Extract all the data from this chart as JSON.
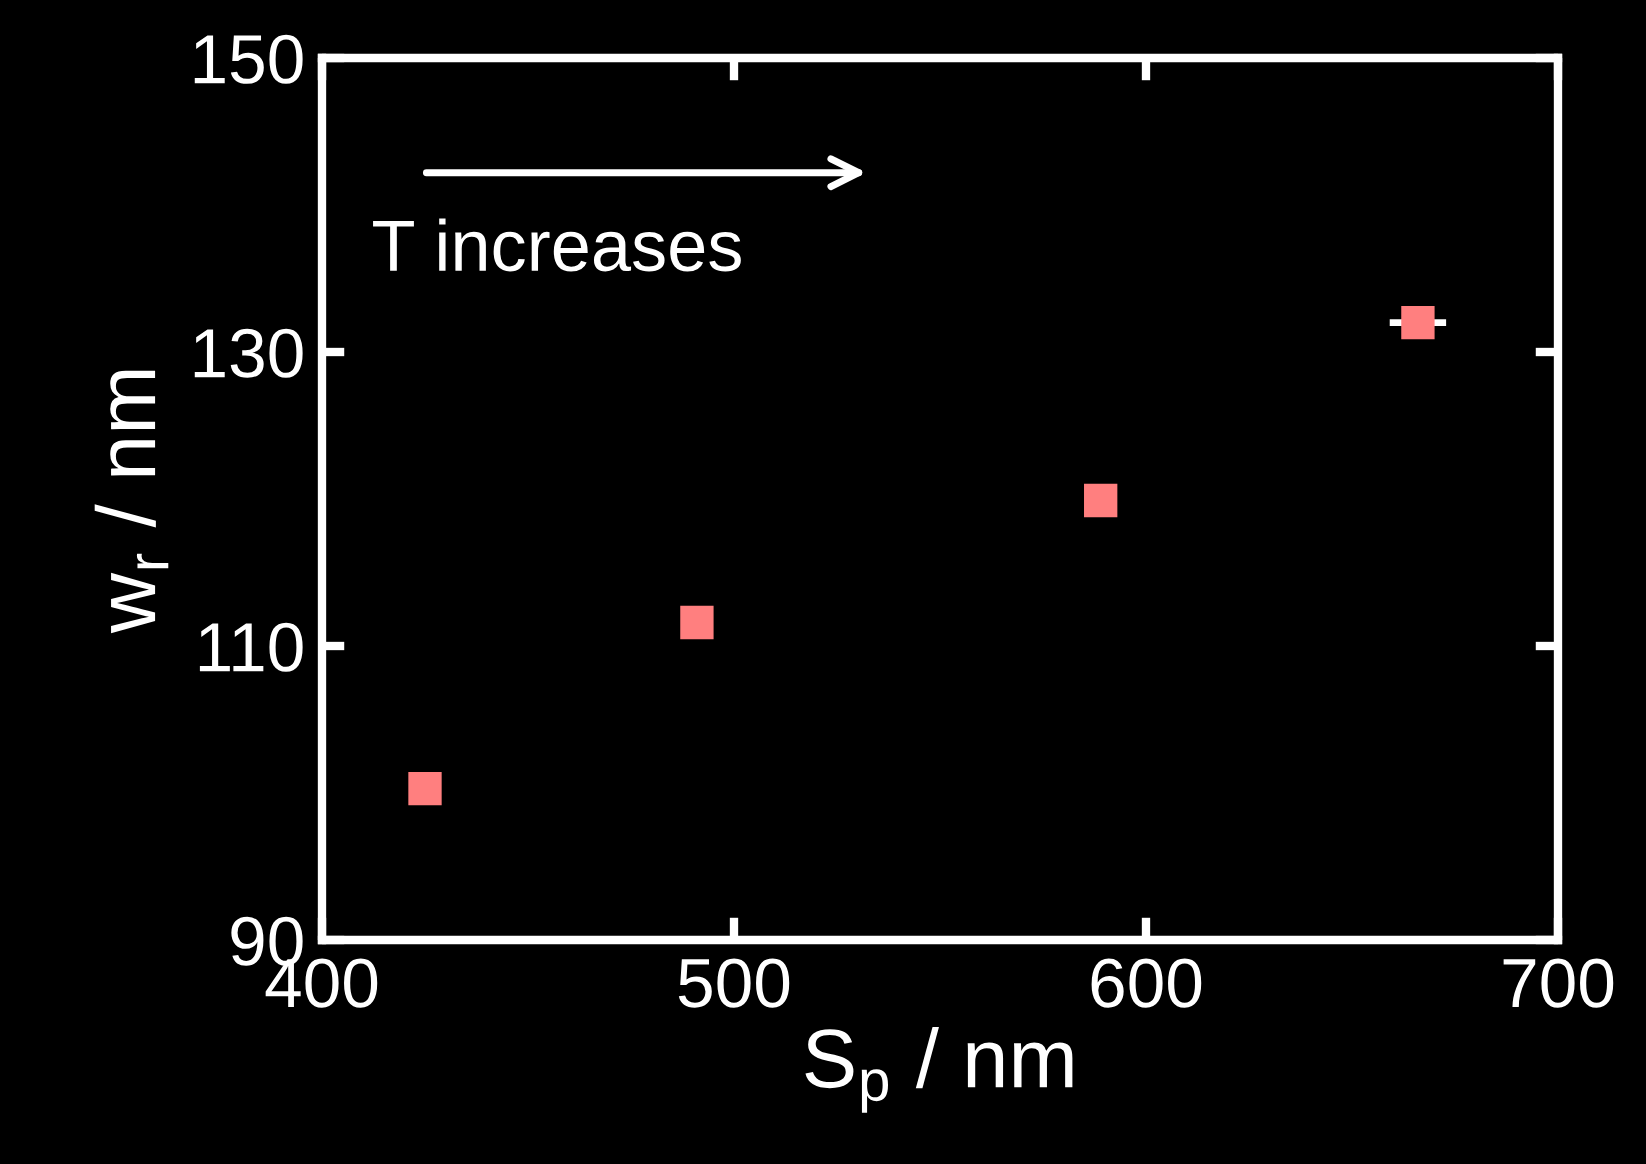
{
  "chart_data": {
    "type": "scatter",
    "xlabel": "S$_{p}$ / nm",
    "ylabel": "w$_{r}$ / nm",
    "x": [
      425,
      491,
      589,
      666
    ],
    "values": [
      100.3,
      111.6,
      119.9,
      132
    ],
    "xerrors": [
      null,
      null,
      null,
      6
    ],
    "color": "#ff7f7f",
    "marker": "square",
    "xlim": [
      400,
      700
    ],
    "ylim": [
      90,
      150
    ],
    "xticks": [
      400,
      500,
      600,
      700
    ],
    "yticks": [
      90,
      110,
      130,
      150
    ],
    "annotations": [
      "T increases"
    ],
    "grid": false,
    "legend": false
  }
}
